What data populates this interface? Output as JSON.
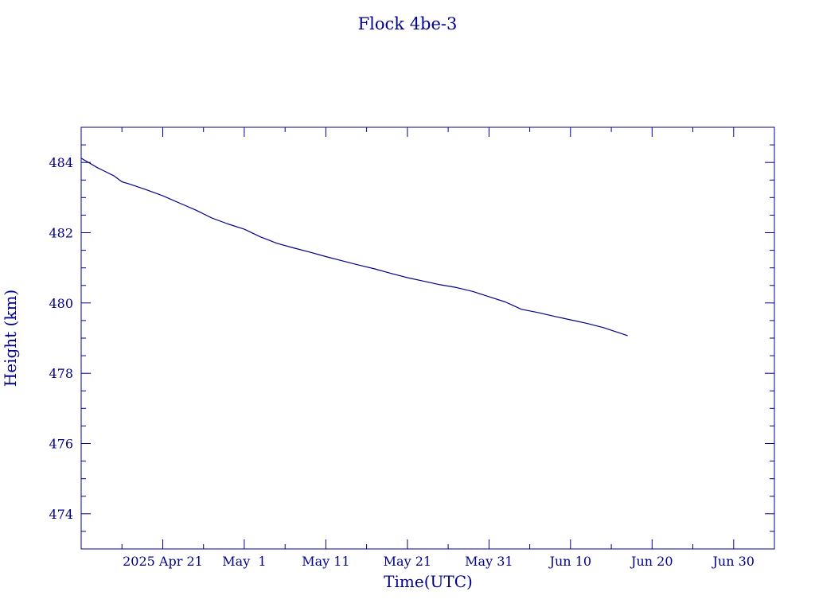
{
  "chart_data": {
    "type": "line",
    "title": "Flock 4be-3",
    "xlabel": "Time(UTC)",
    "ylabel": "Height (km)",
    "x_is_date": true,
    "xlim": [
      "2025-04-11",
      "2025-07-05"
    ],
    "ylim": [
      473,
      485
    ],
    "grid": false,
    "x_ticks": [
      {
        "date": "2025-04-21",
        "label": "2025 Apr 21"
      },
      {
        "date": "2025-05-01",
        "label": "May  1"
      },
      {
        "date": "2025-05-11",
        "label": "May 11"
      },
      {
        "date": "2025-05-21",
        "label": "May 21"
      },
      {
        "date": "2025-05-31",
        "label": "May 31"
      },
      {
        "date": "2025-06-10",
        "label": "Jun 10"
      },
      {
        "date": "2025-06-20",
        "label": "Jun 20"
      },
      {
        "date": "2025-06-30",
        "label": "Jun 30"
      }
    ],
    "y_ticks": [
      474,
      476,
      478,
      480,
      482,
      484
    ],
    "series": [
      {
        "color": "#00008b",
        "x": [
          "2025-04-11",
          "2025-04-13",
          "2025-04-15",
          "2025-04-16",
          "2025-04-17",
          "2025-04-19",
          "2025-04-21",
          "2025-04-23",
          "2025-04-25",
          "2025-04-27",
          "2025-04-29",
          "2025-05-01",
          "2025-05-03",
          "2025-05-05",
          "2025-05-07",
          "2025-05-09",
          "2025-05-11",
          "2025-05-13",
          "2025-05-15",
          "2025-05-17",
          "2025-05-19",
          "2025-05-21",
          "2025-05-23",
          "2025-05-25",
          "2025-05-27",
          "2025-05-29",
          "2025-05-31",
          "2025-06-02",
          "2025-06-04",
          "2025-06-06",
          "2025-06-08",
          "2025-06-10",
          "2025-06-12",
          "2025-06-14",
          "2025-06-16",
          "2025-06-17"
        ],
        "y": [
          484.12,
          483.85,
          483.62,
          483.45,
          483.38,
          483.22,
          483.05,
          482.85,
          482.65,
          482.42,
          482.25,
          482.1,
          481.88,
          481.7,
          481.57,
          481.45,
          481.32,
          481.2,
          481.08,
          480.97,
          480.84,
          480.72,
          480.62,
          480.52,
          480.44,
          480.33,
          480.18,
          480.03,
          479.82,
          479.73,
          479.62,
          479.52,
          479.42,
          479.3,
          479.15,
          479.07
        ]
      }
    ]
  }
}
